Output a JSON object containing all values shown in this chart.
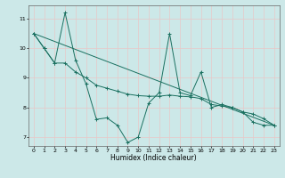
{
  "xlabel": "Humidex (Indice chaleur)",
  "xlim": [
    -0.5,
    23.5
  ],
  "ylim": [
    6.7,
    11.45
  ],
  "yticks": [
    7,
    8,
    9,
    10,
    11
  ],
  "xticks": [
    0,
    1,
    2,
    3,
    4,
    5,
    6,
    7,
    8,
    9,
    10,
    11,
    12,
    13,
    14,
    15,
    16,
    17,
    18,
    19,
    20,
    21,
    22,
    23
  ],
  "bg_color": "#cce8e8",
  "grid_color": "#b0d4d4",
  "line_color": "#1a7060",
  "line1_y": [
    10.5,
    10.0,
    9.5,
    11.2,
    9.6,
    8.8,
    7.6,
    7.65,
    7.4,
    6.82,
    7.0,
    8.15,
    8.5,
    10.5,
    8.5,
    8.4,
    9.2,
    8.0,
    8.1,
    8.0,
    7.85,
    7.5,
    7.4,
    7.4
  ],
  "line2_y": [
    10.5,
    10.0,
    9.5,
    9.5,
    9.2,
    9.0,
    8.75,
    8.65,
    8.55,
    8.45,
    8.4,
    8.38,
    8.38,
    8.42,
    8.38,
    8.36,
    8.3,
    8.1,
    8.05,
    8.0,
    7.85,
    7.78,
    7.62,
    7.4
  ],
  "line3_x": [
    0,
    23
  ],
  "line3_y": [
    10.5,
    7.4
  ],
  "xlabel_fontsize": 5.5,
  "tick_fontsize": 4.5
}
